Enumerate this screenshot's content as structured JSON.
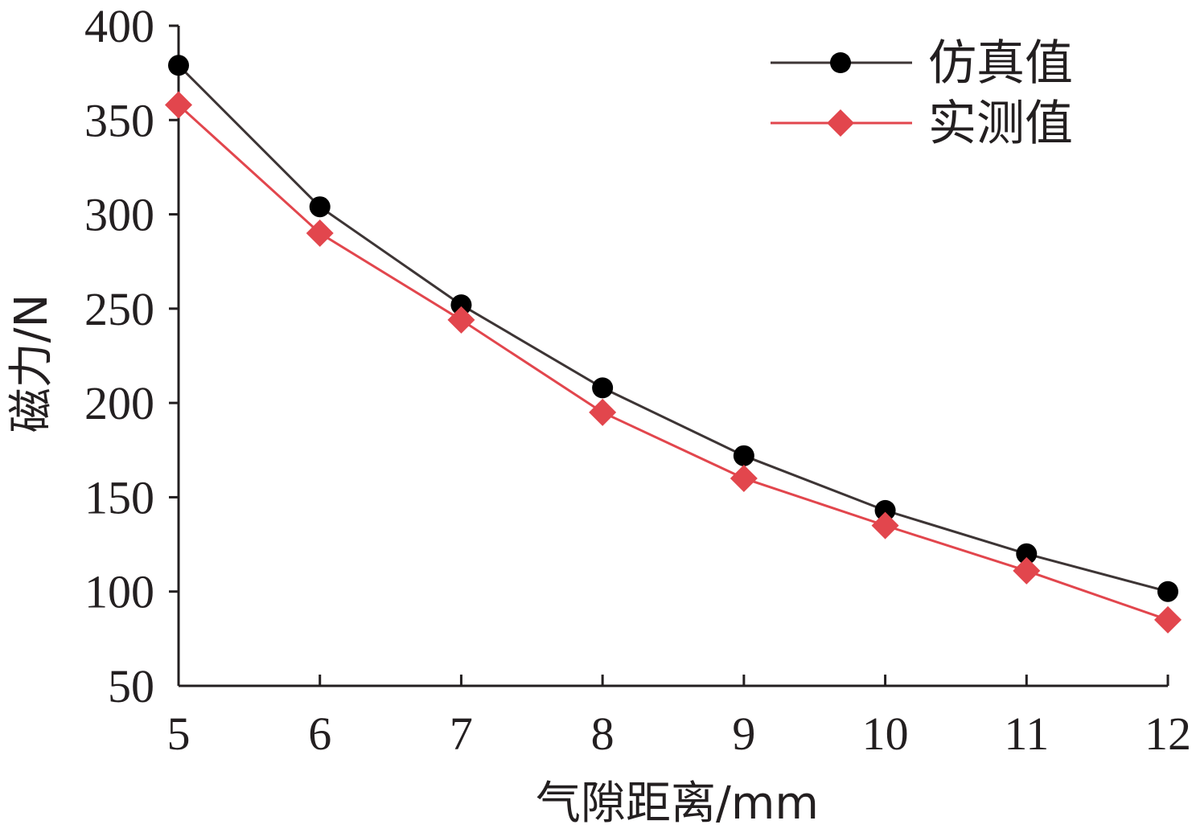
{
  "chart_data": {
    "type": "line",
    "title": "",
    "xlabel": "气隙距离/mm",
    "ylabel": "磁力/N",
    "x": [
      5,
      6,
      7,
      8,
      9,
      10,
      11,
      12
    ],
    "xlim": [
      5,
      12
    ],
    "ylim": [
      50,
      400
    ],
    "xticks": [
      "5",
      "6",
      "7",
      "8",
      "9",
      "10",
      "11",
      "12"
    ],
    "yticks": [
      "50",
      "100",
      "150",
      "200",
      "250",
      "300",
      "350",
      "400"
    ],
    "grid": false,
    "legend_position": "top-right",
    "series": [
      {
        "name": "仿真值",
        "marker": "circle",
        "color": "#3d3535",
        "marker_color": "#000000",
        "values": [
          379,
          304,
          252,
          208,
          172,
          143,
          120,
          100
        ]
      },
      {
        "name": "实测值",
        "marker": "diamond",
        "color": "#e2464d",
        "marker_color": "#e2464d",
        "values": [
          358,
          290,
          244,
          195,
          160,
          135,
          111,
          85
        ]
      }
    ]
  }
}
